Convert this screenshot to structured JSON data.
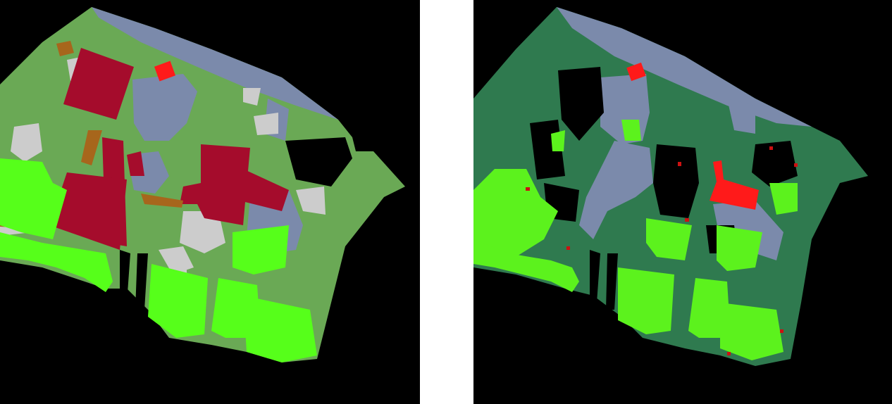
{
  "figure": {
    "panels": [
      {
        "id": "left",
        "map_type": "segmentation-map",
        "background": "#000000"
      },
      {
        "id": "right",
        "map_type": "segmentation-map",
        "background": "#000000"
      }
    ]
  },
  "colors": {
    "left": {
      "background": "#000000",
      "vegetation": "#6aa955",
      "building": "#a50c2c",
      "road": "#7b8aab",
      "clutter": "#cccccc",
      "tree": "#56ff1a",
      "car": "#ff1a1a",
      "soil": "#a7661c"
    },
    "right": {
      "background": "#000000",
      "vegetation": "#2f7a4f",
      "road": "#7b8aab",
      "tree": "#5cf21d",
      "car": "#ff1a1a",
      "noise": "#cc1111"
    }
  }
}
